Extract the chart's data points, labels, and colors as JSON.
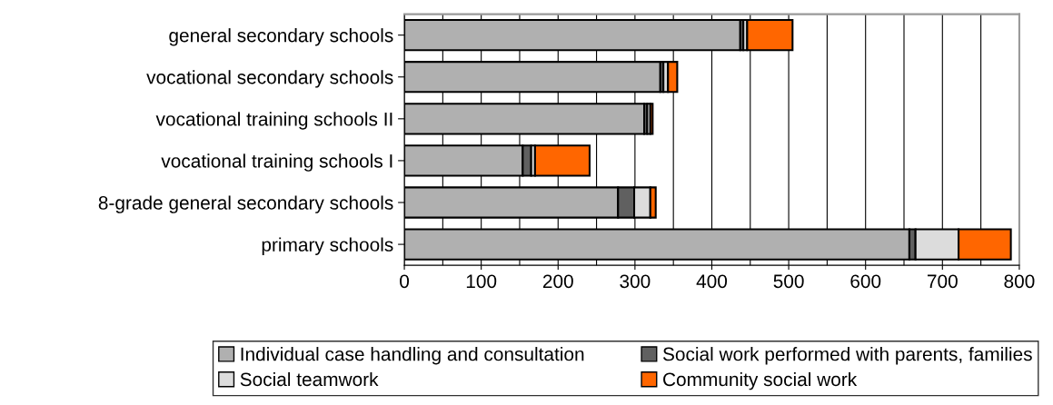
{
  "chart_data": {
    "type": "bar",
    "orientation": "horizontal",
    "stacked": true,
    "categories": [
      "general secondary schools",
      "vocational secondary schools",
      "vocational training schools II",
      "vocational training schools I",
      "8-grade general secondary schools",
      "primary schools"
    ],
    "series": [
      {
        "name": "Individual case handling and consultation",
        "color": "#b0b0b0",
        "values": [
          437,
          333,
          312,
          154,
          278,
          657
        ]
      },
      {
        "name": "Social work performed with parents, families",
        "color": "#606060",
        "values": [
          4,
          4,
          4,
          11,
          21,
          8
        ]
      },
      {
        "name": "Social teamwork",
        "color": "#dcdcdc",
        "values": [
          5,
          6,
          4,
          5,
          21,
          56
        ]
      },
      {
        "name": "Community social work",
        "color": "#ff6600",
        "values": [
          59,
          12,
          3,
          71,
          7,
          68
        ]
      }
    ],
    "xlim": [
      0,
      800
    ],
    "xticks": [
      0,
      100,
      200,
      300,
      400,
      500,
      600,
      700,
      800
    ],
    "grid": "x",
    "legend": "bottom"
  }
}
